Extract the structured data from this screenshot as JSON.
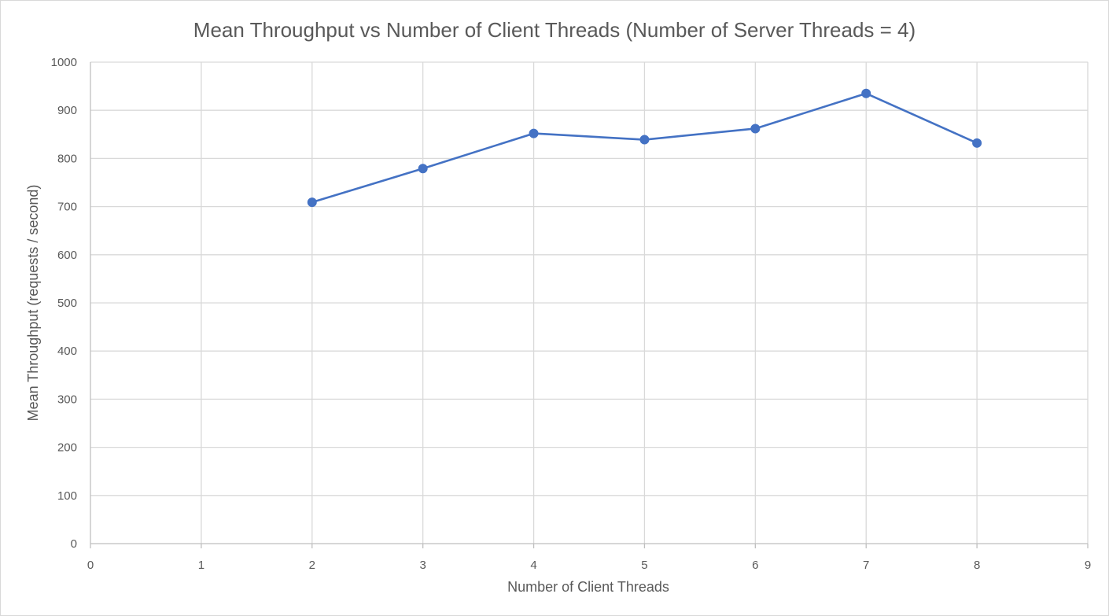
{
  "chart_data": {
    "type": "scatter",
    "title": "Mean Throughput vs Number of Client Threads (Number of Server Threads = 4)",
    "xlabel": "Number of Client Threads",
    "ylabel": "Mean Throughput (requests / second)",
    "xlim": [
      0,
      9
    ],
    "ylim": [
      0,
      1000
    ],
    "x_ticks": [
      0,
      1,
      2,
      3,
      4,
      5,
      6,
      7,
      8,
      9
    ],
    "y_ticks": [
      0,
      100,
      200,
      300,
      400,
      500,
      600,
      700,
      800,
      900,
      1000
    ],
    "grid": true,
    "legend": "none",
    "series": [
      {
        "x": [
          2,
          3,
          4,
          5,
          6,
          7,
          8
        ],
        "y": [
          709,
          779,
          852,
          839,
          862,
          935,
          832
        ],
        "color": "#4472c4",
        "line": true,
        "markers": true
      }
    ]
  }
}
